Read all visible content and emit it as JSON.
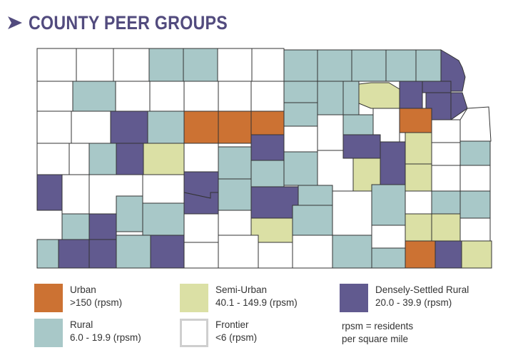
{
  "title": "COUNTY PEER GROUPS",
  "colors": {
    "title": "#524b7e",
    "border": "#333333",
    "urban": "#cc7233",
    "semi_urban": "#dbe0a5",
    "densely_settled_rural": "#615a8f",
    "rural": "#a8c8c8",
    "frontier": "#ffffff"
  },
  "legend": [
    {
      "key": "urban",
      "label": "Urban",
      "range": ">150 (rpsm)"
    },
    {
      "key": "semi_urban",
      "label": "Semi-Urban",
      "range": "40.1 - 149.9 (rpsm)"
    },
    {
      "key": "densely_settled_rural",
      "label": "Densely-Settled Rural",
      "range": "20.0 - 39.9 (rpsm)"
    },
    {
      "key": "rural",
      "label": "Rural",
      "range": "6.0 - 19.9 (rpsm)"
    },
    {
      "key": "frontier",
      "label": "Frontier",
      "range": "<6 (rpsm)"
    }
  ],
  "note": [
    "rpsm = residents",
    "per square mile"
  ],
  "map": {
    "counties": [
      {
        "cat": "frontier"
      },
      {
        "cat": "frontier"
      },
      {
        "cat": "frontier"
      },
      {
        "cat": "rural"
      },
      {
        "cat": "rural"
      },
      {
        "cat": "frontier"
      },
      {
        "cat": "frontier"
      },
      {
        "cat": "rural"
      },
      {
        "cat": "rural"
      },
      {
        "cat": "rural"
      },
      {
        "cat": "rural"
      },
      {
        "cat": "rural"
      },
      {
        "cat": "rural"
      },
      {
        "cat": "densely_settled_rural"
      },
      {
        "cat": "frontier"
      },
      {
        "cat": "rural"
      },
      {
        "cat": "frontier"
      },
      {
        "cat": "frontier"
      },
      {
        "cat": "frontier"
      },
      {
        "cat": "frontier"
      },
      {
        "cat": "frontier"
      },
      {
        "cat": "rural"
      },
      {
        "cat": "rural"
      },
      {
        "cat": "rural"
      },
      {
        "cat": "semi_urban"
      },
      {
        "cat": "densely_settled_rural"
      },
      {
        "cat": "densely_settled_rural"
      },
      {
        "cat": "densely_settled_rural"
      },
      {
        "cat": "densely_settled_rural"
      },
      {
        "cat": "urban"
      },
      {
        "cat": "frontier"
      },
      {
        "cat": "frontier"
      },
      {
        "cat": "frontier"
      },
      {
        "cat": "frontier"
      },
      {
        "cat": "densely_settled_rural"
      },
      {
        "cat": "rural"
      },
      {
        "cat": "frontier"
      },
      {
        "cat": "rural"
      },
      {
        "cat": "densely_settled_rural"
      },
      {
        "cat": "semi_urban"
      },
      {
        "cat": "rural"
      },
      {
        "cat": "urban"
      },
      {
        "cat": "urban"
      },
      {
        "cat": "urban"
      },
      {
        "cat": "frontier"
      },
      {
        "cat": "frontier"
      },
      {
        "cat": "frontier"
      },
      {
        "cat": "semi_urban"
      },
      {
        "cat": "frontier"
      },
      {
        "cat": "rural"
      },
      {
        "cat": "frontier"
      },
      {
        "cat": "frontier"
      },
      {
        "cat": "frontier"
      },
      {
        "cat": "densely_settled_rural"
      },
      {
        "cat": "rural"
      },
      {
        "cat": "densely_settled_rural"
      },
      {
        "cat": "rural"
      },
      {
        "cat": "rural"
      },
      {
        "cat": "frontier"
      },
      {
        "cat": "densely_settled_rural"
      },
      {
        "cat": "densely_settled_rural"
      },
      {
        "cat": "semi_urban"
      },
      {
        "cat": "semi_urban"
      },
      {
        "cat": "frontier"
      },
      {
        "cat": "frontier"
      },
      {
        "cat": "densely_settled_rural"
      },
      {
        "cat": "frontier"
      },
      {
        "cat": "rural"
      },
      {
        "cat": "frontier"
      },
      {
        "cat": "rural"
      },
      {
        "cat": "densely_settled_rural"
      },
      {
        "cat": "rural"
      },
      {
        "cat": "densely_settled_rural"
      },
      {
        "cat": "rural"
      },
      {
        "cat": "rural"
      },
      {
        "cat": "frontier"
      },
      {
        "cat": "rural"
      },
      {
        "cat": "frontier"
      },
      {
        "cat": "rural"
      },
      {
        "cat": "rural"
      },
      {
        "cat": "rural"
      },
      {
        "cat": "densely_settled_rural"
      },
      {
        "cat": "frontier"
      },
      {
        "cat": "frontier"
      },
      {
        "cat": "semi_urban"
      },
      {
        "cat": "semi_urban"
      },
      {
        "cat": "semi_urban"
      },
      {
        "cat": "frontier"
      },
      {
        "cat": "rural"
      },
      {
        "cat": "densely_settled_rural"
      },
      {
        "cat": "densely_settled_rural"
      },
      {
        "cat": "rural"
      },
      {
        "cat": "densely_settled_rural"
      },
      {
        "cat": "frontier"
      },
      {
        "cat": "frontier"
      },
      {
        "cat": "frontier"
      },
      {
        "cat": "frontier"
      },
      {
        "cat": "rural"
      },
      {
        "cat": "urban"
      },
      {
        "cat": "frontier"
      },
      {
        "cat": "rural"
      },
      {
        "cat": "densely_settled_rural"
      },
      {
        "cat": "semi_urban"
      },
      {
        "cat": "rural"
      },
      {
        "cat": "frontier"
      },
      {
        "cat": "frontier"
      },
      {
        "cat": "frontier"
      },
      {
        "cat": "frontier"
      },
      {
        "cat": "rural"
      },
      {
        "cat": "densely_settled_rural"
      },
      {
        "cat": "densely_settled_rural"
      },
      {
        "cat": "frontier"
      },
      {
        "cat": "semi_urban"
      },
      {
        "cat": "densely_settled_rural"
      },
      {
        "cat": "densely_settled_rural"
      }
    ]
  }
}
